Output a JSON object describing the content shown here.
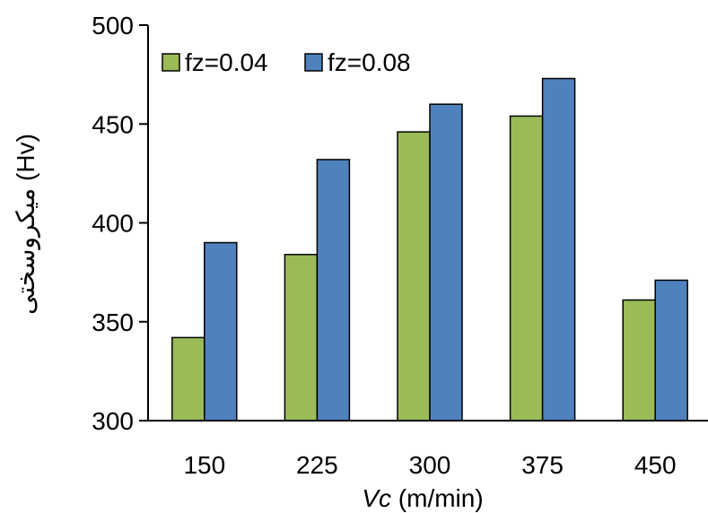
{
  "chart_data": {
    "type": "bar",
    "categories": [
      "150",
      "225",
      "300",
      "375",
      "450"
    ],
    "series": [
      {
        "name": "fz=0.04",
        "color": "#9BBB59",
        "values": [
          342,
          384,
          446,
          454,
          361
        ]
      },
      {
        "name": "fz=0.08",
        "color": "#4F81BD",
        "values": [
          390,
          432,
          460,
          473,
          371
        ]
      }
    ],
    "ylim": [
      300,
      500
    ],
    "yticks": [
      300,
      350,
      400,
      450,
      500
    ],
    "xlabel_italic": "Vc",
    "xlabel_rest": " (m/min)",
    "ylabel": "میکروسختی (Hv)",
    "legend_position": "top-left",
    "grid": false,
    "bar_edge_color": "#000000"
  }
}
